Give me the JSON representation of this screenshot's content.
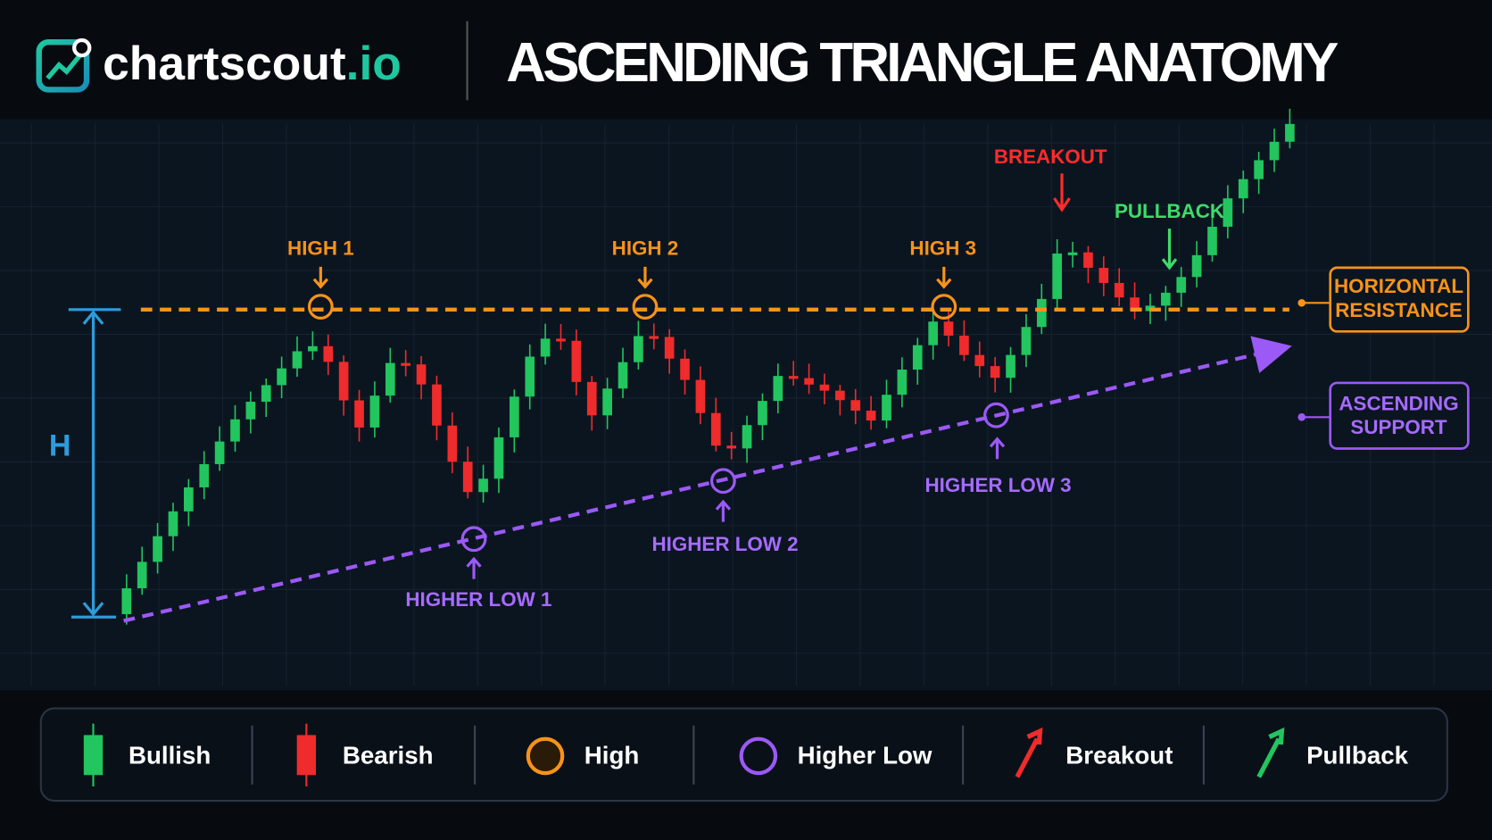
{
  "header": {
    "logo": {
      "name": "chartscout",
      "suffix": ".io"
    },
    "title": "ASCENDING TRIANGLE ANATOMY"
  },
  "annotations": {
    "highs": [
      "HIGH 1",
      "HIGH 2",
      "HIGH 3"
    ],
    "higher_lows": [
      "HIGHER LOW 1",
      "HIGHER LOW 2",
      "HIGHER LOW 3"
    ],
    "breakout": "BREAKOUT",
    "pullback": "PULLBACK",
    "height": "H",
    "resistance": [
      "HORIZONTAL",
      "RESISTANCE"
    ],
    "support": [
      "ASCENDING",
      "SUPPORT"
    ]
  },
  "legend": [
    "Bullish",
    "Bearish",
    "High",
    "Higher Low",
    "Breakout",
    "Pullback"
  ]
}
